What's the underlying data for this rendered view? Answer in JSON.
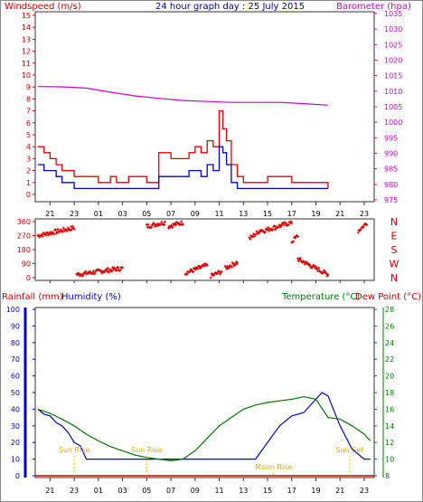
{
  "page": {
    "background": "#ffffff"
  },
  "chart_data": [
    {
      "type": "line",
      "name": "wind-barometer",
      "title": "24 hour graph day : 25 July 2015",
      "left_label": "Windspeed (m/s)",
      "right_label": "Barometer (hpa)",
      "colors": {
        "wind_gust": "#e00000",
        "wind_avg": "#0000cc",
        "barometer": "#cc00cc",
        "left_axis": "#cc0000",
        "right_axis": "#cc00cc"
      },
      "ylim_left": [
        0,
        15
      ],
      "ylim_right": [
        975,
        1035
      ],
      "yticks_left": [
        "0",
        "1",
        "2",
        "3",
        "4",
        "5",
        "6",
        "7",
        "8",
        "9",
        "10",
        "11",
        "12",
        "13",
        "14",
        "15"
      ],
      "yticks_right": [
        "975",
        "980",
        "985",
        "990",
        "995",
        "1000",
        "1005",
        "1010",
        "1015",
        "1020",
        "1025",
        "1030",
        "1035"
      ],
      "x_hours": [
        "21",
        "23",
        "01",
        "03",
        "05",
        "07",
        "09",
        "11",
        "13",
        "15",
        "17",
        "19",
        "21",
        "23"
      ],
      "series": [
        {
          "name": "Barometer",
          "x": [
            0,
            2,
            4,
            6,
            8,
            10,
            12,
            14,
            16,
            18,
            20,
            22,
            24
          ],
          "y": [
            1011.5,
            1011.4,
            1011.0,
            1009.7,
            1008.5,
            1007.7,
            1007.0,
            1006.7,
            1006.4,
            1006.4,
            1006.4,
            1006.0,
            1005.5
          ]
        },
        {
          "name": "Wind gust",
          "x": [
            0,
            0.5,
            1,
            1.5,
            2,
            3,
            4,
            5,
            6,
            6.5,
            7,
            7.5,
            8,
            9,
            10,
            11,
            12,
            12.5,
            13,
            13.5,
            14,
            14.5,
            15,
            15.3,
            15.6,
            16,
            16.5,
            17,
            18,
            19,
            20,
            21,
            22,
            23,
            24
          ],
          "y": [
            4,
            3.5,
            3,
            2.5,
            2,
            1.5,
            1.5,
            1,
            1.5,
            1,
            1,
            1.5,
            1.5,
            1,
            3.5,
            3,
            3,
            3.5,
            4,
            3.5,
            4.5,
            4,
            7,
            5.5,
            4.5,
            2.5,
            1.5,
            1,
            1,
            1.5,
            1.5,
            1,
            1,
            1,
            0.5
          ]
        },
        {
          "name": "Wind average",
          "x": [
            0,
            0.5,
            1,
            1.5,
            2,
            3,
            4,
            5,
            6,
            6.5,
            7,
            7.5,
            8,
            9,
            10,
            11,
            12,
            12.5,
            13,
            13.5,
            14,
            14.5,
            15,
            15.3,
            15.6,
            16,
            16.5,
            17,
            18,
            19,
            20,
            21,
            22,
            23,
            24
          ],
          "y": [
            2.5,
            2,
            2,
            1.5,
            1,
            0.5,
            0.5,
            0.5,
            0.5,
            0.5,
            0.5,
            0.5,
            0.5,
            0.5,
            1.5,
            1.5,
            1.5,
            2,
            2,
            1.5,
            2.5,
            2,
            4,
            3.5,
            2.5,
            1,
            0.5,
            0.5,
            0.5,
            0.5,
            0.5,
            0.5,
            0.5,
            0.5,
            0.5
          ]
        }
      ]
    },
    {
      "type": "scatter",
      "name": "wind-direction",
      "ylabel_ticks": [
        "0",
        "90",
        "180",
        "270",
        "360"
      ],
      "ylim": [
        0,
        360
      ],
      "compass": [
        "N",
        "W",
        "S",
        "E",
        "N"
      ],
      "color": "#e00000",
      "x_hours": [
        "21",
        "23",
        "01",
        "03",
        "05",
        "07",
        "09",
        "11",
        "13",
        "15",
        "17",
        "19",
        "21",
        "23"
      ],
      "segments": [
        {
          "x0": 0.0,
          "x1": 3.0,
          "y0": 270,
          "y1": 320
        },
        {
          "x0": 3.2,
          "x1": 7.0,
          "y0": 20,
          "y1": 60
        },
        {
          "x0": 9.0,
          "x1": 10.5,
          "y0": 330,
          "y1": 355
        },
        {
          "x0": 10.8,
          "x1": 12.0,
          "y0": 330,
          "y1": 355
        },
        {
          "x0": 12.2,
          "x1": 14.0,
          "y0": 30,
          "y1": 80
        },
        {
          "x0": 14.3,
          "x1": 15.2,
          "y0": 10,
          "y1": 40
        },
        {
          "x0": 15.5,
          "x1": 16.5,
          "y0": 60,
          "y1": 100
        },
        {
          "x0": 17.5,
          "x1": 18.5,
          "y0": 250,
          "y1": 310
        },
        {
          "x0": 18.6,
          "x1": 21.0,
          "y0": 300,
          "y1": 355
        },
        {
          "x0": 21.0,
          "x1": 21.5,
          "y0": 230,
          "y1": 270
        },
        {
          "x0": 21.5,
          "x1": 24.0,
          "y0": 120,
          "y1": 20
        },
        {
          "x0": 26.5,
          "x1": 27.2,
          "y0": 300,
          "y1": 350
        }
      ]
    },
    {
      "type": "line",
      "name": "rain-humidity-temperature",
      "labels": {
        "rainfall": "Rainfall (mm)",
        "humidity": "Humidity (%)",
        "temperature": "Temperature (°C)",
        "dewpoint": "Dew Point (°C)"
      },
      "colors": {
        "rainfall": "#cc0000",
        "humidity": "#0000cc",
        "temperature": "#007700",
        "dewpoint": "#cc0000"
      },
      "ylim_left": [
        0,
        100
      ],
      "yticks_left": [
        "0",
        "10",
        "20",
        "30",
        "40",
        "50",
        "60",
        "70",
        "80",
        "90",
        "100"
      ],
      "ylim_right": [
        8,
        28
      ],
      "yticks_right": [
        "8",
        "10",
        "12",
        "14",
        "16",
        "18",
        "20",
        "22",
        "24",
        "26",
        "28"
      ],
      "x_hours": [
        "21",
        "23",
        "01",
        "03",
        "05",
        "07",
        "09",
        "11",
        "13",
        "15",
        "17",
        "19",
        "21",
        "23"
      ],
      "series": [
        {
          "name": "Humidity",
          "x": [
            0,
            0.5,
            1,
            1.5,
            2,
            2.5,
            3,
            3.5,
            4,
            6,
            8,
            10,
            12,
            14,
            16,
            18,
            19,
            20,
            21,
            22,
            23,
            23.5,
            24,
            25,
            26,
            27,
            27.5
          ],
          "y": [
            40,
            37,
            36,
            32,
            30,
            26,
            20,
            18,
            10,
            10,
            10,
            10,
            10,
            10,
            10,
            10,
            20,
            30,
            36,
            38,
            46,
            50,
            48,
            30,
            16,
            10,
            10
          ]
        },
        {
          "name": "Temperature",
          "x": [
            0,
            1,
            2,
            3,
            4,
            5,
            6,
            7,
            8,
            9,
            10,
            11,
            12,
            13,
            14,
            15,
            16,
            17,
            18,
            19,
            20,
            21,
            22,
            23,
            24,
            25,
            26,
            27,
            27.5
          ],
          "y": [
            16,
            15.5,
            14.8,
            14,
            13,
            12.2,
            11.5,
            11,
            10.5,
            10.2,
            10,
            9.8,
            10,
            11,
            12.5,
            14,
            15,
            16,
            16.5,
            16.8,
            17,
            17.2,
            17.5,
            17.2,
            15,
            14.8,
            14,
            13,
            12.2
          ]
        }
      ],
      "annotations": [
        "Sun Rise",
        "Sun Rise",
        "Moon Rise",
        "Sun Set"
      ]
    }
  ]
}
